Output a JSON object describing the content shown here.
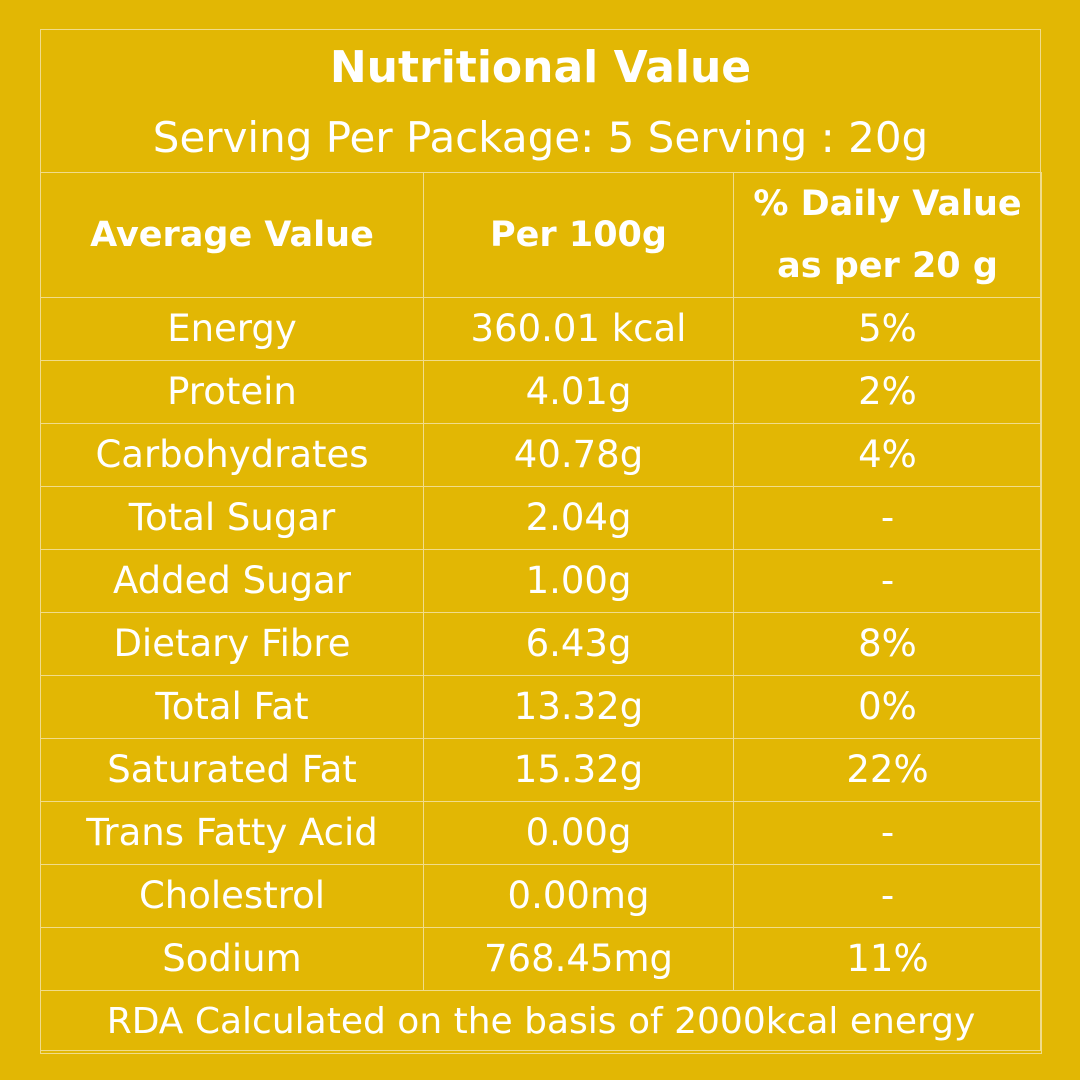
{
  "header": {
    "title": "Nutritional Value",
    "subtitle": "Serving Per Package: 5 Serving : 20g"
  },
  "table": {
    "columns": [
      "Average Value",
      "Per 100g",
      "% Daily Value as per 20 g"
    ],
    "rows": [
      {
        "nutrient": "Energy",
        "per100": "360.01 kcal",
        "dv": "5%"
      },
      {
        "nutrient": "Protein",
        "per100": "4.01g",
        "dv": "2%"
      },
      {
        "nutrient": "Carbohydrates",
        "per100": "40.78g",
        "dv": "4%"
      },
      {
        "nutrient": "Total Sugar",
        "per100": "2.04g",
        "dv": "-"
      },
      {
        "nutrient": "Added Sugar",
        "per100": "1.00g",
        "dv": "-"
      },
      {
        "nutrient": "Dietary Fibre",
        "per100": "6.43g",
        "dv": "8%"
      },
      {
        "nutrient": "Total Fat",
        "per100": "13.32g",
        "dv": "0%"
      },
      {
        "nutrient": "Saturated Fat",
        "per100": "15.32g",
        "dv": "22%"
      },
      {
        "nutrient": "Trans Fatty Acid",
        "per100": "0.00g",
        "dv": "-"
      },
      {
        "nutrient": "Cholestrol",
        "per100": "0.00mg",
        "dv": "-"
      },
      {
        "nutrient": "Sodium",
        "per100": "768.45mg",
        "dv": "11%"
      }
    ],
    "footer": "RDA Calculated on the basis of 2000kcal energy"
  },
  "colors": {
    "background": "#e2b704",
    "text": "#ffffff",
    "rule": "#f1dc8a"
  }
}
